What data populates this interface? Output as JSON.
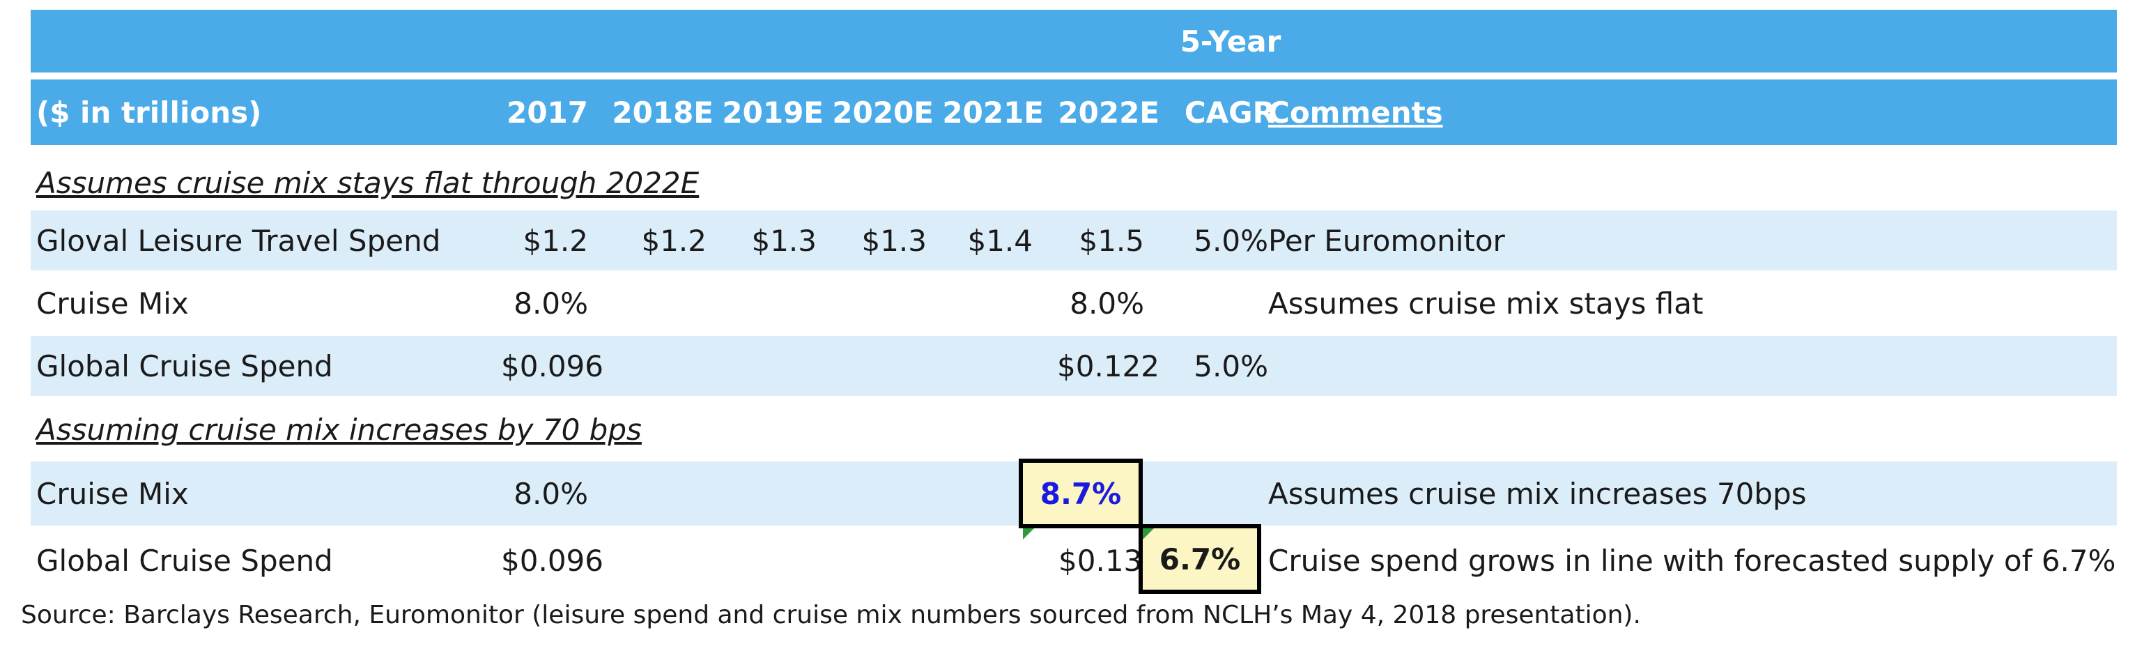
{
  "header": {
    "super_label": "5-Year",
    "unit_label": "($ in trillions)",
    "columns": [
      "2017",
      "2018E",
      "2019E",
      "2020E",
      "2021E",
      "2022E",
      "CAGR"
    ],
    "comments_label": "Comments"
  },
  "section1": {
    "title": "Assumes cruise mix stays flat through 2022E",
    "rows": [
      {
        "label": "Gloval Leisure Travel Spend",
        "values": [
          "$1.2",
          "$1.2",
          "$1.3",
          "$1.3",
          "$1.4",
          "$1.5",
          "5.0%"
        ],
        "comment": "Per Euromonitor"
      },
      {
        "label": "Cruise Mix",
        "values": [
          "8.0%",
          "",
          "",
          "",
          "",
          "8.0%",
          ""
        ],
        "comment": "Assumes cruise mix stays flat"
      },
      {
        "label": "Global Cruise Spend",
        "values": [
          "$0.096",
          "",
          "",
          "",
          "",
          "$0.122",
          "5.0%"
        ],
        "comment": ""
      }
    ]
  },
  "section2": {
    "title": "Assuming cruise mix increases by 70 bps",
    "rows": [
      {
        "label": "Cruise Mix",
        "values": [
          "8.0%",
          "",
          "",
          "",
          "",
          "8.7%",
          ""
        ],
        "comment": "Assumes cruise mix increases 70bps"
      },
      {
        "label": "Global Cruise Spend",
        "values": [
          "$0.096",
          "",
          "",
          "",
          "",
          "$0.133",
          "6.7%"
        ],
        "comment": "Cruise spend grows in line with forecasted supply of 6.7%"
      }
    ]
  },
  "source": "Source: Barclays Research, Euromonitor (leisure spend and cruise mix numbers sourced from NCLH’s May 4, 2018 presentation).",
  "colors": {
    "header_bg": "#4aabe8",
    "band_bg": "#dcedfa",
    "highlight_bg": "#fbf6c4",
    "input_blue": "#1a1ae0",
    "comment_marker": "#2e9a3a"
  }
}
